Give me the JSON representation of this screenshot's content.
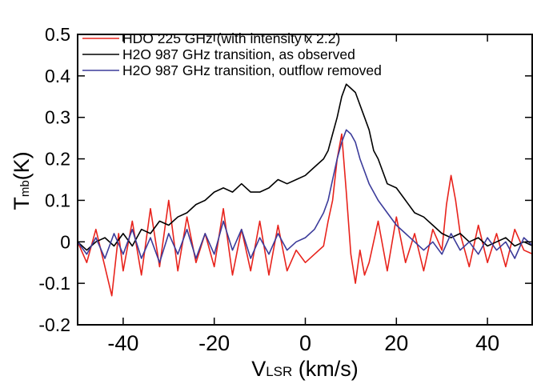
{
  "chart_data": {
    "type": "line",
    "title": "",
    "xlabel": {
      "main": "V",
      "sub": "LSR",
      "unit": " (km/s)"
    },
    "ylabel": {
      "main": "T",
      "sub": "mb",
      "unit": "(K)"
    },
    "xlim": [
      -50,
      50
    ],
    "ylim": [
      -0.2,
      0.5
    ],
    "xticks": [
      -40,
      -20,
      0,
      20,
      40
    ],
    "xtick_labels": [
      "-40",
      "-20",
      "0",
      "20",
      "40"
    ],
    "yticks": [
      -0.2,
      -0.1,
      0,
      0.1,
      0.2,
      0.3,
      0.4,
      0.5
    ],
    "ytick_labels": [
      "-0.2",
      "-0.1",
      "0",
      "0.1",
      "0.2",
      "0.3",
      "0.4",
      "0.5"
    ],
    "grid": false,
    "legend_position": "top-left",
    "series": [
      {
        "name": "HDO 225 GHz (with intensity x 2.2)",
        "color": "#e8231c",
        "x": [
          -50,
          -48,
          -46,
          -44,
          -42.5,
          -41,
          -40,
          -38,
          -36,
          -34,
          -32,
          -30,
          -28,
          -26,
          -24,
          -22,
          -20,
          -18,
          -16,
          -14,
          -12,
          -10,
          -8,
          -6,
          -4,
          -2,
          0,
          2,
          4,
          5,
          6,
          7,
          8,
          9,
          10,
          11,
          12,
          13,
          14,
          16,
          18,
          20,
          22,
          24,
          26,
          28,
          30,
          31,
          32,
          33,
          34,
          36,
          38,
          40,
          42,
          44,
          46,
          48,
          50
        ],
        "y": [
          0.0,
          -0.05,
          0.03,
          -0.06,
          -0.13,
          0.02,
          -0.07,
          0.05,
          -0.08,
          0.08,
          -0.06,
          0.1,
          -0.07,
          0.06,
          -0.05,
          0.02,
          -0.06,
          0.08,
          -0.08,
          0.03,
          -0.07,
          0.05,
          -0.08,
          0.04,
          -0.07,
          -0.02,
          -0.05,
          -0.03,
          -0.01,
          0.05,
          0.1,
          0.2,
          0.26,
          0.12,
          -0.03,
          -0.1,
          -0.02,
          -0.08,
          -0.05,
          0.05,
          -0.07,
          0.06,
          -0.05,
          0.02,
          -0.07,
          0.03,
          -0.02,
          0.09,
          0.16,
          0.1,
          0.02,
          -0.06,
          0.04,
          -0.05,
          0.02,
          -0.06,
          0.03,
          -0.02,
          -0.03
        ]
      },
      {
        "name": "H2O 987 GHz transition, as observed",
        "color": "#000000",
        "x": [
          -50,
          -48,
          -46,
          -44,
          -42,
          -40,
          -38,
          -36,
          -34,
          -32,
          -30,
          -28,
          -26,
          -24,
          -22,
          -20,
          -18,
          -16,
          -14,
          -12,
          -10,
          -8,
          -6,
          -4,
          -2,
          0,
          2,
          4,
          5,
          6,
          7,
          8,
          9,
          10,
          11,
          12,
          13,
          14,
          15,
          16,
          18,
          20,
          22,
          24,
          26,
          28,
          30,
          32,
          34,
          36,
          38,
          40,
          42,
          44,
          46,
          48,
          50
        ],
        "y": [
          0.0,
          -0.02,
          0.0,
          0.01,
          -0.01,
          0.02,
          -0.01,
          0.03,
          0.02,
          0.05,
          0.04,
          0.06,
          0.07,
          0.09,
          0.1,
          0.12,
          0.13,
          0.12,
          0.14,
          0.12,
          0.12,
          0.13,
          0.15,
          0.14,
          0.15,
          0.16,
          0.18,
          0.2,
          0.22,
          0.26,
          0.3,
          0.35,
          0.38,
          0.37,
          0.36,
          0.33,
          0.3,
          0.27,
          0.22,
          0.2,
          0.14,
          0.13,
          0.1,
          0.07,
          0.06,
          0.04,
          0.02,
          0.01,
          0.02,
          0.0,
          0.01,
          -0.01,
          0.0,
          0.01,
          -0.01,
          0.0,
          -0.01
        ]
      },
      {
        "name": "H2O 987 GHz transition, outflow removed",
        "color": "#3b3b9a",
        "x": [
          -50,
          -48,
          -46,
          -44,
          -42,
          -40,
          -38,
          -36,
          -34,
          -32,
          -30,
          -28,
          -26,
          -24,
          -22,
          -20,
          -18,
          -16,
          -14,
          -12,
          -10,
          -8,
          -6,
          -4,
          -2,
          0,
          2,
          4,
          5,
          6,
          7,
          8,
          9,
          10,
          11,
          12,
          13,
          14,
          15,
          16,
          18,
          20,
          22,
          24,
          26,
          28,
          30,
          32,
          34,
          36,
          38,
          40,
          42,
          44,
          46,
          48,
          50
        ],
        "y": [
          0.0,
          -0.03,
          0.01,
          -0.04,
          0.02,
          -0.03,
          0.03,
          -0.04,
          0.01,
          -0.05,
          0.02,
          -0.03,
          0.03,
          -0.04,
          0.02,
          -0.03,
          0.05,
          -0.02,
          0.03,
          -0.04,
          0.01,
          -0.03,
          0.02,
          -0.02,
          0.0,
          0.01,
          0.03,
          0.07,
          0.1,
          0.15,
          0.2,
          0.24,
          0.27,
          0.26,
          0.24,
          0.2,
          0.17,
          0.14,
          0.12,
          0.1,
          0.07,
          0.04,
          0.02,
          0.0,
          -0.02,
          0.0,
          -0.03,
          0.02,
          -0.02,
          0.0,
          -0.03,
          0.01,
          -0.02,
          0.0,
          -0.04,
          0.01,
          -0.01
        ]
      }
    ]
  }
}
